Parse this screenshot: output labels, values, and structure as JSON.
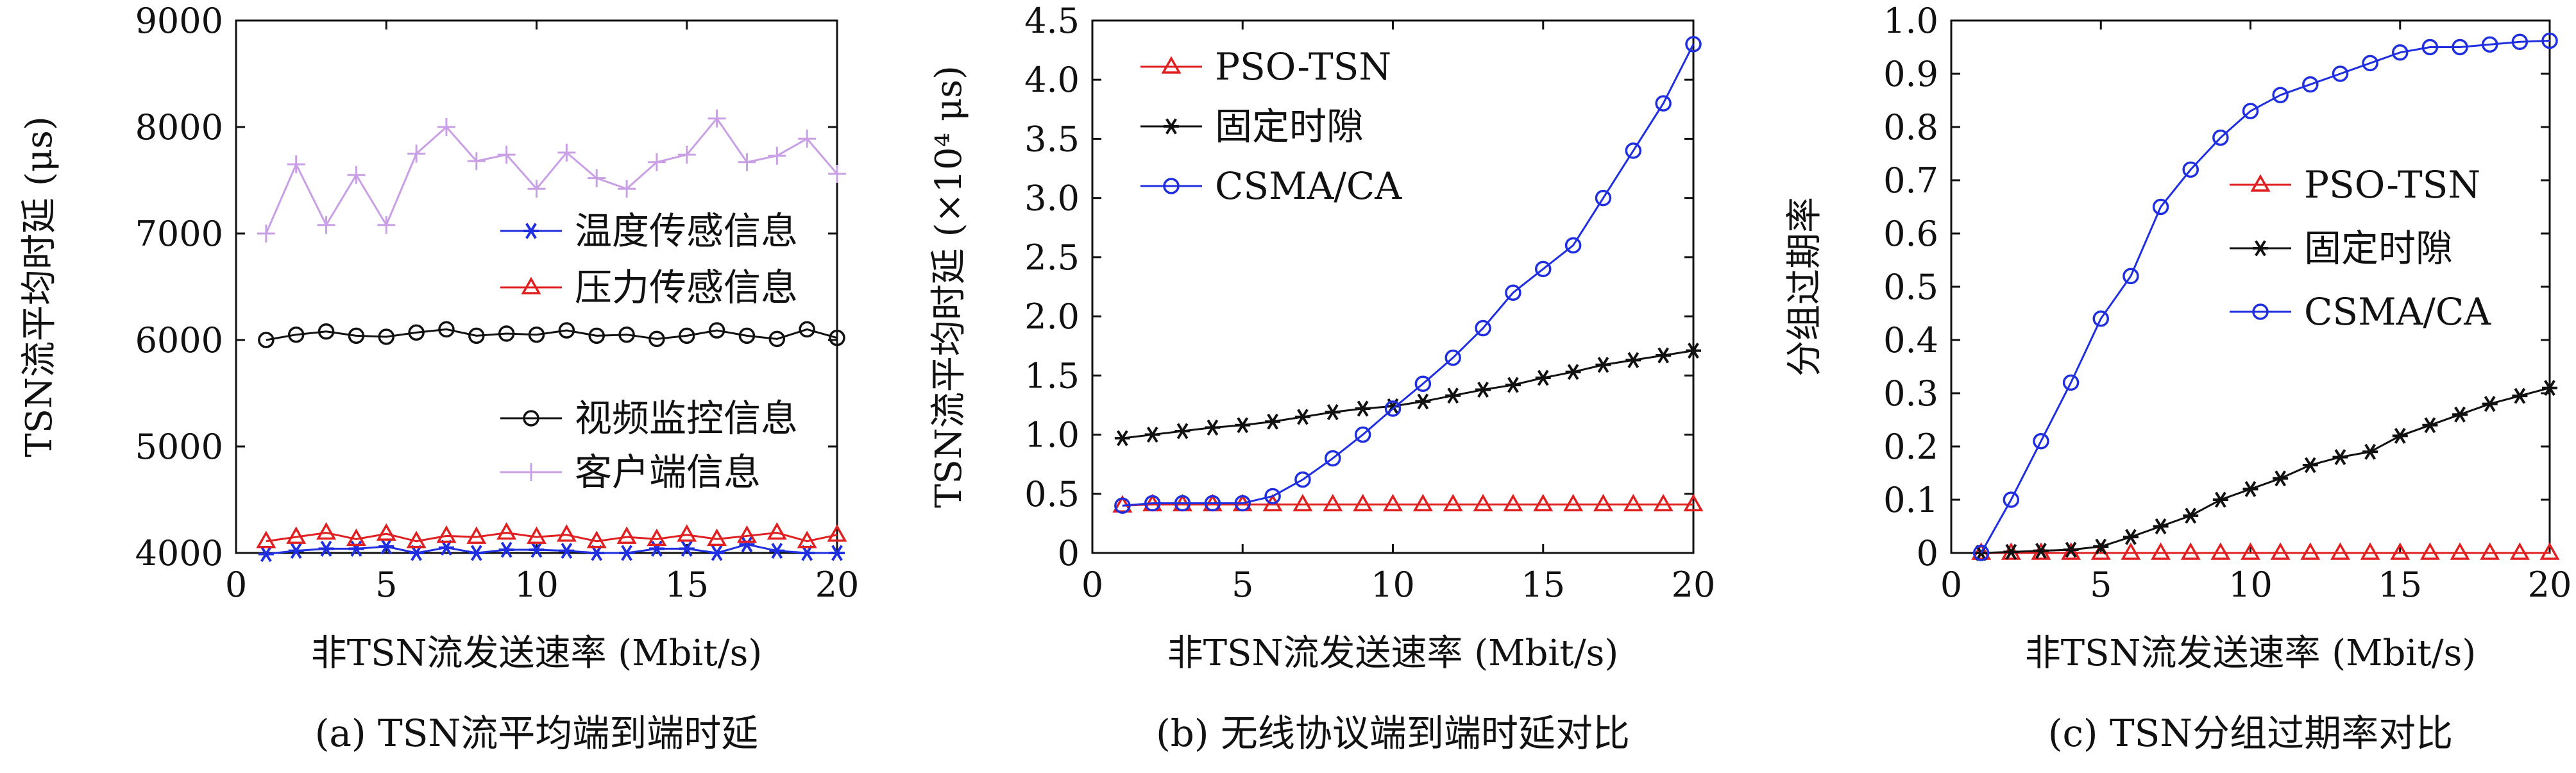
{
  "chart_data": [
    {
      "type": "line",
      "caption": "(a) TSN流平均端到端时延",
      "xlabel": "非TSN流发送速率 (Mbit/s)",
      "ylabel": "TSN流平均时延 (μs)",
      "xlim": [
        0,
        20
      ],
      "ylim": [
        4000,
        9000
      ],
      "xticks": [
        0,
        5,
        10,
        15,
        20
      ],
      "yticks": [
        4000,
        5000,
        6000,
        7000,
        8000,
        9000
      ],
      "grid": false,
      "legend": "right (two groups)",
      "x": [
        1,
        2,
        3,
        4,
        5,
        6,
        7,
        8,
        9,
        10,
        11,
        12,
        13,
        14,
        15,
        16,
        17,
        18,
        19,
        20
      ],
      "series": [
        {
          "name": "温度传感信息",
          "color": "#1f2fe0",
          "marker": "asterisk",
          "values": [
            3990,
            4020,
            4040,
            4040,
            4060,
            4000,
            4050,
            4000,
            4030,
            4030,
            4020,
            4000,
            4000,
            4040,
            4040,
            4000,
            4080,
            4020,
            4000,
            4000
          ]
        },
        {
          "name": "压力传感信息",
          "color": "#e02020",
          "marker": "triangle",
          "values": [
            4110,
            4150,
            4190,
            4130,
            4180,
            4110,
            4160,
            4150,
            4190,
            4150,
            4170,
            4110,
            4150,
            4130,
            4170,
            4130,
            4160,
            4190,
            4110,
            4170
          ]
        },
        {
          "name": "视频监控信息",
          "color": "#111111",
          "marker": "circle",
          "values": [
            6000,
            6050,
            6080,
            6040,
            6030,
            6070,
            6100,
            6040,
            6060,
            6050,
            6090,
            6040,
            6050,
            6010,
            6040,
            6090,
            6040,
            6010,
            6100,
            6020
          ]
        },
        {
          "name": "客户端信息",
          "color": "#c9a0e6",
          "marker": "plus",
          "values": [
            7000,
            7650,
            7080,
            7550,
            7080,
            7750,
            8000,
            7680,
            7740,
            7420,
            7760,
            7520,
            7420,
            7670,
            7740,
            8080,
            7670,
            7730,
            7890,
            7560
          ]
        }
      ]
    },
    {
      "type": "line",
      "caption": "(b) 无线协议端到端时延对比",
      "xlabel": "非TSN流发送速率 (Mbit/s)",
      "ylabel": "TSN流平均时延 (×10⁴ μs)",
      "xlim": [
        0,
        20
      ],
      "ylim": [
        0,
        4.5
      ],
      "xticks": [
        0,
        5,
        10,
        15,
        20
      ],
      "yticks": [
        "0",
        "0.5",
        "1.0",
        "1.5",
        "2.0",
        "2.5",
        "3.0",
        "3.5",
        "4.0",
        "4.5"
      ],
      "grid": false,
      "legend": "top-left",
      "x": [
        1,
        2,
        3,
        4,
        5,
        6,
        7,
        8,
        9,
        10,
        11,
        12,
        13,
        14,
        15,
        16,
        17,
        18,
        19,
        20
      ],
      "series": [
        {
          "name": "PSO-TSN",
          "color": "#e02020",
          "marker": "triangle",
          "values": [
            0.4,
            0.41,
            0.41,
            0.41,
            0.41,
            0.41,
            0.41,
            0.41,
            0.41,
            0.41,
            0.41,
            0.41,
            0.41,
            0.41,
            0.41,
            0.41,
            0.41,
            0.41,
            0.41,
            0.41
          ]
        },
        {
          "name": "固定时隙",
          "color": "#111111",
          "marker": "asterisk",
          "values": [
            0.97,
            1.0,
            1.03,
            1.06,
            1.08,
            1.11,
            1.15,
            1.19,
            1.22,
            1.24,
            1.28,
            1.33,
            1.38,
            1.42,
            1.48,
            1.53,
            1.59,
            1.63,
            1.67,
            1.71
          ]
        },
        {
          "name": "CSMA/CA",
          "color": "#1f2fe0",
          "marker": "circle",
          "values": [
            0.4,
            0.42,
            0.42,
            0.42,
            0.42,
            0.48,
            0.62,
            0.8,
            1.0,
            1.22,
            1.43,
            1.65,
            1.9,
            2.2,
            2.4,
            2.6,
            3.0,
            3.4,
            3.8,
            4.3
          ]
        }
      ]
    },
    {
      "type": "line",
      "caption": "(c) TSN分组过期率对比",
      "xlabel": "非TSN流发送速率 (Mbit/s)",
      "ylabel": "分组过期率",
      "xlim": [
        0,
        20
      ],
      "ylim": [
        0,
        1.0
      ],
      "xticks": [
        0,
        5,
        10,
        15,
        20
      ],
      "yticks": [
        "0",
        "0.1",
        "0.2",
        "0.3",
        "0.4",
        "0.5",
        "0.6",
        "0.7",
        "0.8",
        "0.9",
        "1.0"
      ],
      "grid": false,
      "legend": "right",
      "x": [
        1,
        2,
        3,
        4,
        5,
        6,
        7,
        8,
        9,
        10,
        11,
        12,
        13,
        14,
        15,
        16,
        17,
        18,
        19,
        20
      ],
      "series": [
        {
          "name": "PSO-TSN",
          "color": "#e02020",
          "marker": "triangle",
          "values": [
            0,
            0,
            0,
            0,
            0,
            0,
            0,
            0,
            0,
            0,
            0,
            0,
            0,
            0,
            0,
            0,
            0,
            0,
            0,
            0
          ]
        },
        {
          "name": "固定时隙",
          "color": "#111111",
          "marker": "asterisk",
          "values": [
            0,
            0.002,
            0.004,
            0.006,
            0.012,
            0.03,
            0.05,
            0.07,
            0.1,
            0.12,
            0.14,
            0.165,
            0.18,
            0.19,
            0.22,
            0.24,
            0.26,
            0.28,
            0.295,
            0.31
          ]
        },
        {
          "name": "CSMA/CA",
          "color": "#1f2fe0",
          "marker": "circle",
          "values": [
            0,
            0.1,
            0.21,
            0.32,
            0.44,
            0.52,
            0.65,
            0.72,
            0.78,
            0.83,
            0.86,
            0.88,
            0.9,
            0.92,
            0.94,
            0.95,
            0.95,
            0.955,
            0.96,
            0.962
          ]
        }
      ]
    }
  ]
}
